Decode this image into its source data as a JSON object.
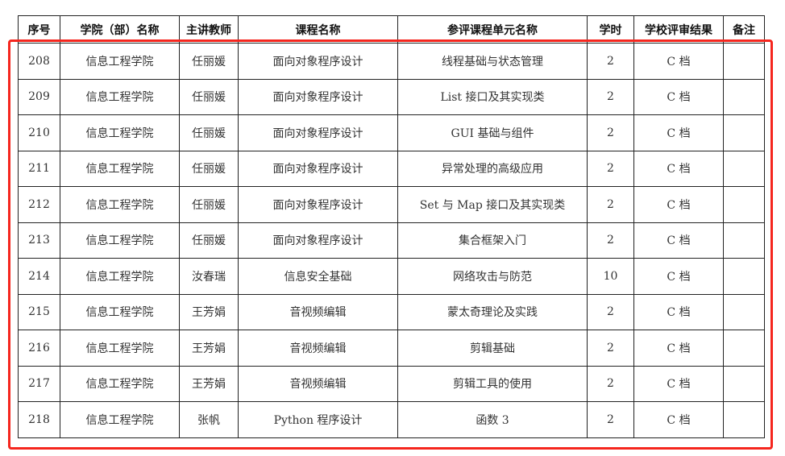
{
  "headers": [
    "序号",
    "学院（部）名称",
    "主讲教师",
    "课程名称",
    "参评课程单元名称",
    "学时",
    "学校评审结果",
    "备注"
  ],
  "rows": [
    [
      "208",
      "信息工程学院",
      "任丽媛",
      "面向对象程序设计",
      "线程基础与状态管理",
      "2",
      "C 档",
      ""
    ],
    [
      "209",
      "信息工程学院",
      "任丽媛",
      "面向对象程序设计",
      "List 接口及其实现类",
      "2",
      "C 档",
      ""
    ],
    [
      "210",
      "信息工程学院",
      "任丽媛",
      "面向对象程序设计",
      "GUI 基础与组件",
      "2",
      "C 档",
      ""
    ],
    [
      "211",
      "信息工程学院",
      "任丽媛",
      "面向对象程序设计",
      "异常处理的高级应用",
      "2",
      "C 档",
      ""
    ],
    [
      "212",
      "信息工程学院",
      "任丽媛",
      "面向对象程序设计",
      "Set 与 Map 接口及其实现类",
      "2",
      "C 档",
      ""
    ],
    [
      "213",
      "信息工程学院",
      "任丽媛",
      "面向对象程序设计",
      "集合框架入门",
      "2",
      "C 档",
      ""
    ],
    [
      "214",
      "信息工程学院",
      "汝春瑞",
      "信息安全基础",
      "网络攻击与防范",
      "10",
      "C 档",
      ""
    ],
    [
      "215",
      "信息工程学院",
      "王芳娟",
      "音视频编辑",
      "蒙太奇理论及实践",
      "2",
      "C 档",
      ""
    ],
    [
      "216",
      "信息工程学院",
      "王芳娟",
      "音视频编辑",
      "剪辑基础",
      "2",
      "C 档",
      ""
    ],
    [
      "217",
      "信息工程学院",
      "王芳娟",
      "音视频编辑",
      "剪辑工具的使用",
      "2",
      "C 档",
      ""
    ],
    [
      "218",
      "信息工程学院",
      "张帆",
      "Python 程序设计",
      "函数 3",
      "2",
      "C 档",
      ""
    ]
  ],
  "highlight_color": "#f5261e"
}
